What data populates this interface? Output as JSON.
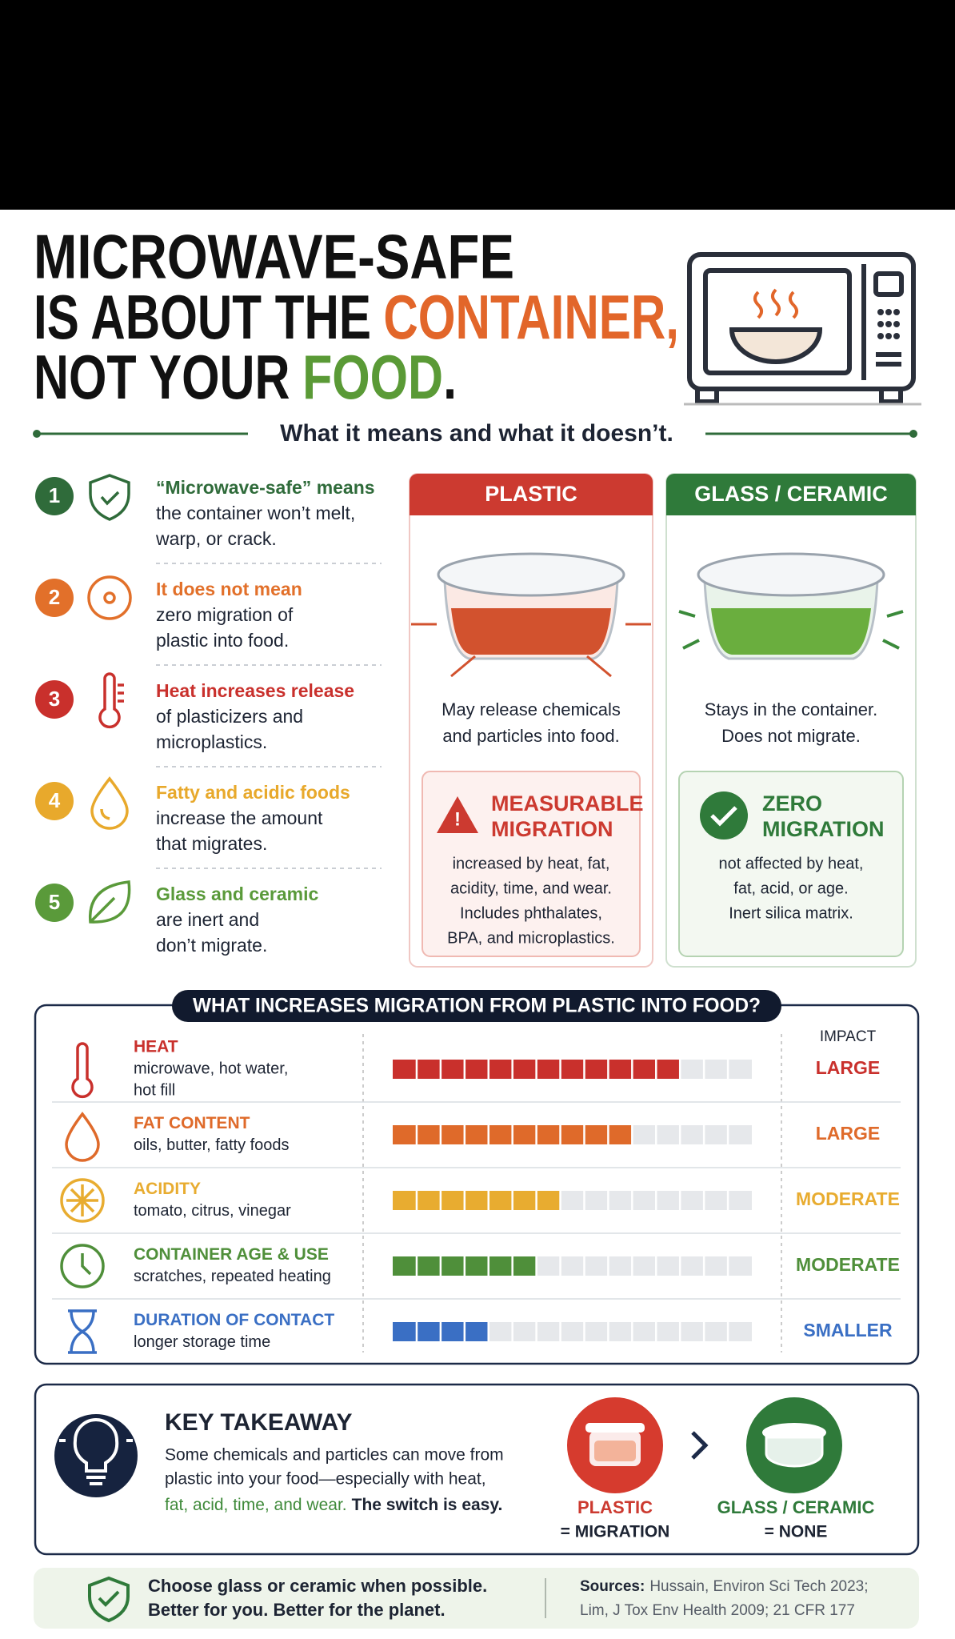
{
  "header": {
    "title": {
      "line1": "MICROWAVE-SAFE",
      "line2": "IS ABOUT THE",
      "line2_highlight": "CONTAINER,",
      "line2_color": "#e2662a",
      "line3": "NOT YOUR",
      "line3_highlight": "FOOD",
      "line3_end": ".",
      "line3_color": "#5a9a36"
    },
    "subtitle": "What it means and what it doesn’t."
  },
  "facts": [
    {
      "number": 1,
      "color": "#2f6b3a",
      "headline": "“Microwave-safe” means",
      "lines": [
        "the container won’t melt,",
        "warp, or crack."
      ]
    },
    {
      "number": 2,
      "color": "#e2702a",
      "headline": "It does not mean",
      "lines": [
        "zero migration of",
        "plastic into food."
      ]
    },
    {
      "number": 3,
      "color": "#c9302c",
      "headline": "Heat increases release",
      "lines": [
        "of plasticizers and",
        "microplastics."
      ]
    },
    {
      "number": 4,
      "color": "#e8a92c",
      "headline": "Fatty and acidic foods",
      "lines": [
        "increase the amount",
        "that migrates."
      ]
    },
    {
      "number": 5,
      "color": "#5a9a3a",
      "headline": "Glass and ceramic",
      "lines": [
        "are inert and",
        "don’t migrate."
      ]
    }
  ],
  "comparison": [
    {
      "title": "PLASTIC",
      "color": "#cc3a30",
      "caption": [
        "May release chemicals",
        "and particles into food."
      ],
      "verdict": [
        "MEASURABLE",
        "MIGRATION"
      ],
      "details": [
        "increased by heat, fat,",
        "acidity, time, and wear.",
        "Includes phthalates,",
        "BPA, and microplastics."
      ]
    },
    {
      "title": "GLASS / CERAMIC",
      "color": "#2f7a3a",
      "caption": [
        "Stays in the container.",
        "Does not migrate."
      ],
      "verdict": [
        "ZERO",
        "MIGRATION"
      ],
      "details": [
        "not affected by heat,",
        "fat, acid, or age.",
        "Inert silica matrix."
      ]
    }
  ],
  "migration": {
    "title": "WHAT INCREASES MIGRATION FROM PLASTIC INTO FOOD?",
    "impact_header": "IMPACT",
    "segments": 15,
    "factors": [
      {
        "name": "HEAT",
        "description": [
          "microwave, hot water,",
          "hot fill"
        ],
        "filled": 12,
        "impact": "LARGE",
        "color": "#c9302c"
      },
      {
        "name": "FAT CONTENT",
        "description": [
          "oils, butter, fatty foods"
        ],
        "filled": 10,
        "impact": "LARGE",
        "color": "#df6a2a"
      },
      {
        "name": "ACIDITY",
        "description": [
          "tomato, citrus, vinegar"
        ],
        "filled": 7,
        "impact": "MODERATE",
        "color": "#e8ac30"
      },
      {
        "name": "CONTAINER AGE & USE",
        "description": [
          "scratches, repeated heating"
        ],
        "filled": 6,
        "impact": "MODERATE",
        "color": "#4f8f3a"
      },
      {
        "name": "DURATION OF CONTACT",
        "description": [
          "longer storage time"
        ],
        "filled": 4,
        "impact": "SMALLER",
        "color": "#3a6fc4"
      }
    ]
  },
  "takeaway": {
    "title": "KEY TAKEAWAY",
    "lines": [
      "Some chemicals and particles can move from",
      "plastic into your food—especially with heat,"
    ],
    "last_line_green": "fat, acid, time, and wear.",
    "last_line_bold": "The switch is easy.",
    "from": {
      "label": "PLASTIC",
      "result": "= MIGRATION"
    },
    "to": {
      "label": "GLASS / CERAMIC",
      "result": "= NONE"
    }
  },
  "footer": {
    "message": [
      "Choose glass or ceramic when possible.",
      "Better for you. Better for the planet."
    ],
    "sources_label": "Sources:",
    "sources": [
      "Hussain, Environ Sci Tech 2023;",
      "Lim, J Tox Env Health 2009; 21 CFR 177"
    ]
  }
}
